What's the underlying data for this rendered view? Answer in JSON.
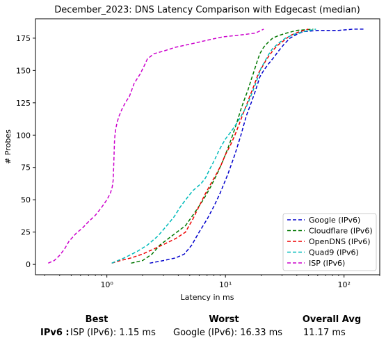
{
  "chart_data": {
    "type": "line",
    "title": "December_2023: DNS Latency Comparison with Edgecast (median)",
    "xlabel": "Latency in ms",
    "ylabel": "# Probes",
    "xscale": "log",
    "xlim": [
      0.25,
      200
    ],
    "ylim": [
      -8,
      190
    ],
    "x_ticks": [
      1,
      10,
      100
    ],
    "x_tick_labels": [
      "10⁰",
      "10¹",
      "10²"
    ],
    "y_ticks": [
      0,
      25,
      50,
      75,
      100,
      125,
      150,
      175
    ],
    "grid": false,
    "legend_position": "lower-right",
    "series": [
      {
        "name": "Google (IPv6)",
        "color": "#0000cc",
        "x": [
          2.3,
          3.0,
          3.8,
          4.5,
          5.2,
          6.0,
          7.0,
          8.0,
          9.0,
          10.5,
          12.0,
          13.5,
          15.0,
          16.5,
          18.0,
          19.5,
          21.0,
          23.0,
          25.5,
          28.0,
          31.0,
          35.0,
          40.0,
          45.0,
          60.0,
          90.0,
          120.0,
          150.0
        ],
        "y": [
          1,
          3,
          5,
          8,
          15,
          25,
          35,
          45,
          55,
          70,
          85,
          100,
          115,
          125,
          135,
          145,
          150,
          155,
          160,
          165,
          170,
          175,
          178,
          180,
          181,
          181,
          182,
          182
        ]
      },
      {
        "name": "Cloudflare (IPv6)",
        "color": "#007700",
        "x": [
          1.6,
          2.0,
          2.4,
          2.8,
          3.3,
          3.9,
          4.6,
          5.5,
          6.5,
          7.5,
          8.5,
          9.5,
          10.5,
          11.5,
          12.5,
          13.5,
          14.5,
          15.5,
          16.5,
          17.5,
          18.5,
          19.5,
          21.0,
          23.0,
          25.0,
          28.0,
          33.0,
          40.0,
          55.0
        ],
        "y": [
          1,
          3,
          8,
          15,
          20,
          25,
          30,
          40,
          50,
          60,
          70,
          80,
          90,
          100,
          110,
          120,
          128,
          135,
          143,
          150,
          157,
          163,
          168,
          172,
          175,
          177,
          179,
          181,
          182
        ]
      },
      {
        "name": "OpenDNS (IPv6)",
        "color": "#ee0000",
        "x": [
          1.1,
          1.3,
          1.6,
          2.0,
          2.5,
          3.1,
          3.8,
          4.6,
          5.3,
          6.0,
          6.8,
          7.6,
          8.4,
          9.2,
          10.0,
          11.0,
          12.0,
          13.0,
          14.0,
          15.0,
          16.0,
          17.0,
          18.0,
          19.0,
          20.5,
          22.0,
          24.0,
          26.0,
          28.0,
          31.0,
          35.0,
          42.0,
          50.0
        ],
        "y": [
          1,
          3,
          5,
          8,
          12,
          16,
          20,
          25,
          35,
          45,
          55,
          63,
          70,
          77,
          85,
          92,
          100,
          108,
          116,
          123,
          130,
          136,
          142,
          148,
          153,
          158,
          163,
          167,
          170,
          173,
          177,
          180,
          182
        ]
      },
      {
        "name": "Quad9 (IPv6)",
        "color": "#00bbbb",
        "x": [
          1.1,
          1.4,
          1.8,
          2.2,
          2.7,
          3.2,
          3.7,
          4.2,
          4.8,
          5.3,
          5.8,
          6.3,
          6.8,
          7.3,
          7.8,
          8.3,
          8.8,
          9.3,
          10.0,
          11.0,
          12.0,
          13.0,
          14.0,
          15.0,
          16.0,
          17.0,
          18.0,
          19.0,
          20.0,
          21.5,
          23.0,
          25.0,
          28.0,
          32.0,
          38.0,
          45.0,
          58.0
        ],
        "y": [
          1,
          5,
          10,
          15,
          22,
          30,
          37,
          45,
          52,
          57,
          60,
          63,
          67,
          73,
          78,
          83,
          88,
          92,
          97,
          102,
          107,
          112,
          117,
          122,
          128,
          134,
          140,
          146,
          152,
          157,
          162,
          167,
          171,
          175,
          178,
          180,
          182
        ]
      },
      {
        "name": "ISP (IPv6)",
        "color": "#cc00cc",
        "x": [
          0.32,
          0.36,
          0.4,
          0.44,
          0.48,
          0.55,
          0.62,
          0.7,
          0.8,
          0.9,
          1.0,
          1.07,
          1.11,
          1.13,
          1.14,
          1.15,
          1.16,
          1.17,
          1.19,
          1.22,
          1.27,
          1.34,
          1.43,
          1.55,
          1.7,
          1.9,
          2.05,
          2.2,
          2.5,
          3.0,
          3.8,
          4.8,
          6.0,
          7.5,
          9.5,
          12.0,
          15.0,
          18.0,
          21.0
        ],
        "y": [
          1,
          3,
          7,
          12,
          18,
          24,
          28,
          33,
          38,
          44,
          50,
          55,
          60,
          65,
          75,
          85,
          95,
          100,
          105,
          110,
          115,
          120,
          125,
          130,
          140,
          147,
          153,
          159,
          163,
          165,
          168,
          170,
          172,
          174,
          176,
          177,
          178,
          179,
          182
        ]
      }
    ]
  },
  "summary": {
    "headers": {
      "best": "Best",
      "worst": "Worst",
      "avg": "Overall Avg"
    },
    "row_label": "IPv6 :",
    "best_value": "ISP (IPv6): 1.15 ms",
    "worst_value": "Google (IPv6): 16.33 ms",
    "avg_value": "11.17 ms"
  }
}
